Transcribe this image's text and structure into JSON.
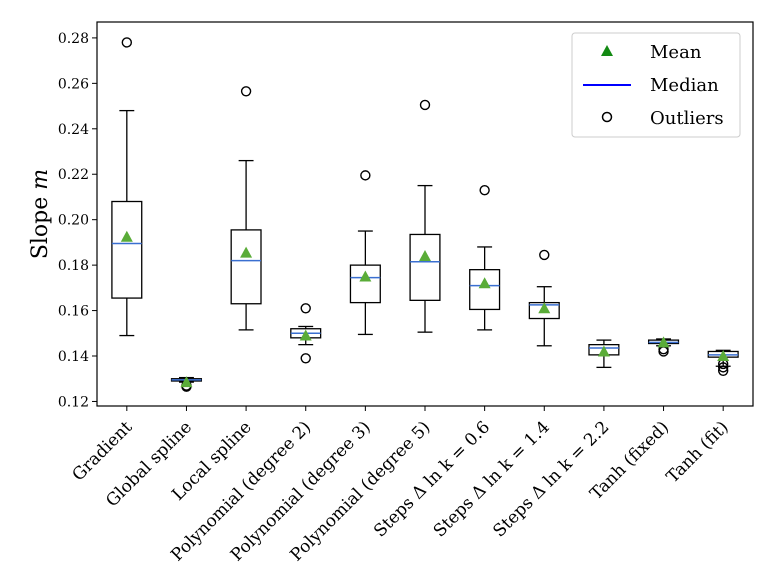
{
  "chart_data": {
    "type": "boxplot",
    "title": "",
    "xlabel": "",
    "ylabel": "Slope",
    "ylabel_symbol": "m",
    "ylim": [
      0.118,
      0.287
    ],
    "yticks": [
      "0.12",
      "0.14",
      "0.16",
      "0.18",
      "0.20",
      "0.22",
      "0.24",
      "0.26",
      "0.28"
    ],
    "categories": [
      "Gradient",
      "Global spline",
      "Local spline",
      "Polynomial (degree 2)",
      "Polynomial (degree 3)",
      "Polynomial (degree 5)",
      "Steps Δ ln k = 0.6",
      "Steps Δ ln k = 1.4",
      "Steps Δ ln k = 2.2",
      "Tanh (fixed)",
      "Tanh (fit)"
    ],
    "boxes": [
      {
        "whislo": 0.149,
        "q1": 0.1655,
        "med": 0.1895,
        "q3": 0.208,
        "whishi": 0.248,
        "mean": 0.1925,
        "fliers": [
          0.278
        ]
      },
      {
        "whislo": 0.1285,
        "q1": 0.129,
        "med": 0.1295,
        "q3": 0.13,
        "whishi": 0.1305,
        "mean": 0.1285,
        "fliers": [
          0.1265,
          0.127
        ]
      },
      {
        "whislo": 0.1515,
        "q1": 0.163,
        "med": 0.182,
        "q3": 0.1955,
        "whishi": 0.226,
        "mean": 0.1855,
        "fliers": [
          0.2565
        ]
      },
      {
        "whislo": 0.145,
        "q1": 0.148,
        "med": 0.15,
        "q3": 0.152,
        "whishi": 0.153,
        "mean": 0.149,
        "fliers": [
          0.161,
          0.139
        ]
      },
      {
        "whislo": 0.1495,
        "q1": 0.1635,
        "med": 0.1745,
        "q3": 0.18,
        "whishi": 0.195,
        "mean": 0.175,
        "fliers": [
          0.2195
        ]
      },
      {
        "whislo": 0.1505,
        "q1": 0.1645,
        "med": 0.1815,
        "q3": 0.1935,
        "whishi": 0.215,
        "mean": 0.184,
        "fliers": [
          0.2505
        ]
      },
      {
        "whislo": 0.1515,
        "q1": 0.1605,
        "med": 0.171,
        "q3": 0.178,
        "whishi": 0.188,
        "mean": 0.172,
        "fliers": [
          0.213
        ]
      },
      {
        "whislo": 0.1445,
        "q1": 0.1565,
        "med": 0.1625,
        "q3": 0.1635,
        "whishi": 0.1705,
        "mean": 0.161,
        "fliers": [
          0.1845
        ]
      },
      {
        "whislo": 0.135,
        "q1": 0.1405,
        "med": 0.1435,
        "q3": 0.145,
        "whishi": 0.147,
        "mean": 0.142,
        "fliers": []
      },
      {
        "whislo": 0.1445,
        "q1": 0.1455,
        "med": 0.146,
        "q3": 0.147,
        "whishi": 0.1475,
        "mean": 0.146,
        "fliers": [
          0.142,
          0.143
        ]
      },
      {
        "whislo": 0.1355,
        "q1": 0.1395,
        "med": 0.1405,
        "q3": 0.142,
        "whishi": 0.1425,
        "mean": 0.14,
        "fliers": [
          0.1335,
          0.135,
          0.1365
        ]
      }
    ],
    "legend": {
      "position": "top-right",
      "entries": [
        {
          "label": "Mean",
          "marker": "triangle"
        },
        {
          "label": "Median",
          "marker": "line"
        },
        {
          "label": "Outliers",
          "marker": "circle"
        }
      ]
    },
    "colors": {
      "mean": "#5aac38",
      "median": "#3a6fd0",
      "box": "#000000",
      "legend_mean": "#138a13",
      "legend_median": "#0000ff"
    }
  }
}
